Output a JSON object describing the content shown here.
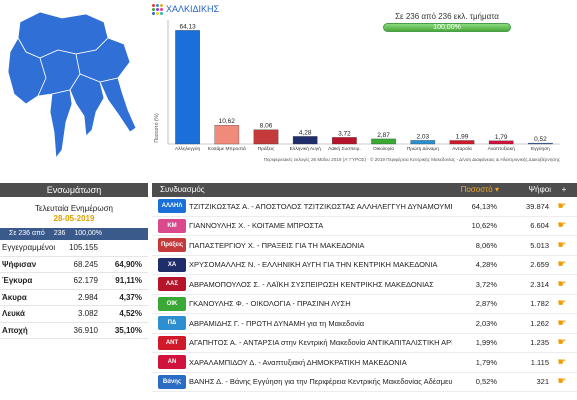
{
  "region": {
    "title": "ΧΑΛΚΙΔΙΚΗΣ",
    "icon": "dots-grid-icon"
  },
  "progress": {
    "label": "Σε 236 από 236 εκλ. τμήματα",
    "percent_text": "100,00%",
    "fraction": 1.0,
    "color": "#5cb85c"
  },
  "chart_data": {
    "type": "bar",
    "categories": [
      "Αλληλεγγύη",
      "Κοιτάμε Μπροστά",
      "Πράξεις",
      "Ελληνική Αυγή",
      "Λαϊκή Συσπειρ.",
      "Οικολογία",
      "Πρώτη Δύναμη",
      "Ανταρσία",
      "Αναπτυξιακή",
      "Εγγύηση"
    ],
    "values": [
      64.13,
      10.62,
      8.06,
      4.28,
      3.72,
      2.87,
      2.03,
      1.99,
      1.79,
      0.52
    ],
    "value_labels": [
      "64,13",
      "10,62",
      "8,06",
      "4,28",
      "3,72",
      "2,87",
      "2,03",
      "1,99",
      "1,79",
      "0,52"
    ],
    "colors": [
      "#1a6fd8",
      "#f08a7a",
      "#c43a3a",
      "#1f2d6b",
      "#b5142a",
      "#3aa835",
      "#2c8fd0",
      "#d01a2a",
      "#d0123c",
      "#2b6cc4"
    ],
    "ylabel": "Ποσοστό (%)",
    "ylim": [
      0,
      70
    ],
    "footer": "Περιφερειακές εκλογές 26 Μαΐου 2019 (Α' ΓΥΡΟΣ) · © 2019 Περιφέρεια Κεντρικής Μακεδονίας - Δ/νση Διαφάνειας & Ηλεκτρονικής Διακυβέρνησης"
  },
  "summary": {
    "header": "Ενσωμάτωση",
    "update_label": "Τελευταία Ενημέρωση",
    "update_date": "28-05-2019",
    "count_bar": [
      "Σε 236 από",
      "236",
      "100,00%"
    ],
    "rows": [
      {
        "label": "Εγγεγραμμένοι",
        "value": "105.155",
        "pct": ""
      },
      {
        "label": "Ψήφισαν",
        "value": "68.245",
        "pct": "64,90%"
      },
      {
        "label": "Έγκυρα",
        "value": "62.179",
        "pct": "91,11%"
      },
      {
        "label": "Άκυρα",
        "value": "2.984",
        "pct": "4,37%"
      },
      {
        "label": "Λευκά",
        "value": "3.082",
        "pct": "4,52%"
      },
      {
        "label": "Αποχή",
        "value": "36.910",
        "pct": "35,10%"
      }
    ]
  },
  "table": {
    "headers": {
      "name": "Συνδυασμός",
      "pct": "Ποσοστό",
      "votes": "Ψήφοι",
      "action": "+"
    },
    "rows": [
      {
        "logo": "ΑΛΛΗΛ",
        "logo_color": "#1a6fd8",
        "name": "ΤΖΙΤΖΙΚΩΣΤΑΣ Α. - ΑΠΟΣΤΟΛΟΣ ΤΖΙΤΖΙΚΩΣΤΑΣ ΑΛΛΗΛΕΓΓΥΗ ΔΥΝΑΜΟΥΜΕ",
        "pct": "64,13%",
        "votes": "39.874",
        "action_icon": "chart-hand-icon"
      },
      {
        "logo": "ΚΜ",
        "logo_color": "#d94a8c",
        "name": "ΓΙΑΝΝΟΥΛΗΣ Χ. - ΚΟΙΤΑΜΕ ΜΠΡΟΣΤΑ",
        "pct": "10,62%",
        "votes": "6.604",
        "action_icon": "chart-hand-icon"
      },
      {
        "logo": "Πράξεις",
        "logo_color": "#c43a3a",
        "name": "ΠΑΠΑΣΤΕΡΓΙΟΥ Χ. - ΠΡΑΞΕΙΣ ΓΙΑ ΤΗ ΜΑΚΕΔΟΝΙΑ",
        "pct": "8,06%",
        "votes": "5.013",
        "action_icon": "chart-hand-icon"
      },
      {
        "logo": "ΧΑ",
        "logo_color": "#1f2d6b",
        "name": "ΧΡΥΣΟΜΑΛΛΗΣ Ν. - ΕΛΛΗΝΙΚΗ ΑΥΓΗ ΓΙΑ ΤΗΝ ΚΕΝΤΡΙΚΗ ΜΑΚΕΔΟΝΙΑ",
        "pct": "4,28%",
        "votes": "2.659",
        "action_icon": "chart-hand-icon"
      },
      {
        "logo": "ΛΑΣ",
        "logo_color": "#b5142a",
        "name": "ΑΒΡΑΜΟΠΟΥΛΟΣ Σ. - ΛΑΪΚΗ ΣΥΣΠΕΙΡΩΣΗ ΚΕΝΤΡΙΚΗΣ ΜΑΚΕΔΟΝΙΑΣ",
        "pct": "3,72%",
        "votes": "2.314",
        "action_icon": "chart-hand-icon"
      },
      {
        "logo": "ΟΙΚ",
        "logo_color": "#3aa835",
        "name": "ΓΚΑΝΟΥΛΗΣ Φ. - ΟΙΚΟΛΟΓΙΑ - ΠΡΑΣΙΝΗ ΛΥΣΗ",
        "pct": "2,87%",
        "votes": "1.782",
        "action_icon": "chart-hand-icon"
      },
      {
        "logo": "ΠΔ",
        "logo_color": "#2c8fd0",
        "name": "ΑΒΡΑΜΙΔΗΣ Γ. - ΠΡΩΤΗ ΔΥΝΑΜΗ για τη Μακεδονία",
        "pct": "2,03%",
        "votes": "1.262",
        "action_icon": "chart-hand-icon"
      },
      {
        "logo": "ΑΝΤ",
        "logo_color": "#d01a2a",
        "name": "ΑΓΑΠΗΤΟΣ Α. - ΑΝΤΑΡΣΙΑ στην Κεντρική Μακεδονία ΑΝΤΙΚΑΠΙΤΑΛΙΣΤΙΚΗ ΑΡΙΣΤΕ",
        "pct": "1,99%",
        "votes": "1.235",
        "action_icon": "chart-hand-icon"
      },
      {
        "logo": "ΑΝ",
        "logo_color": "#d0123c",
        "name": "ΧΑΡΑΛΑΜΠΙΔΟΥ Δ. - Αναπτυξιακή ΔΗΜΟΚΡΑΤΙΚΗ ΜΑΚΕΔΟΝΙΑ",
        "pct": "1,79%",
        "votes": "1.115",
        "action_icon": "chart-hand-icon"
      },
      {
        "logo": "Βάνης",
        "logo_color": "#2b6cc4",
        "name": "ΒΑΝΗΣ Δ. - Βάνης Εγγύηση για την Περιφέρεια Κεντρικής Μακεδονίας Αδέσμευτος",
        "pct": "0,52%",
        "votes": "321",
        "action_icon": "chart-hand-icon"
      }
    ]
  }
}
